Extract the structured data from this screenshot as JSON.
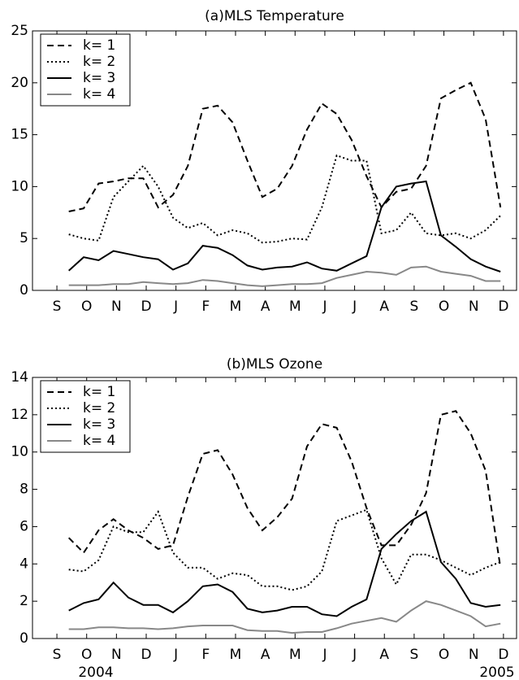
{
  "chart_data": [
    {
      "type": "line",
      "title": "(a)MLS Temperature",
      "x": [
        0.4,
        0.9,
        1.4,
        1.9,
        2.4,
        2.9,
        3.4,
        3.9,
        4.4,
        4.9,
        5.4,
        5.9,
        6.4,
        6.9,
        7.4,
        7.9,
        8.4,
        8.9,
        9.4,
        9.9,
        10.4,
        10.9,
        11.4,
        11.9,
        12.4,
        12.9,
        13.4,
        13.9,
        14.4,
        14.9
      ],
      "xlim": [
        -0.82,
        15.44
      ],
      "xticks": [
        {
          "value": 0,
          "label": "S"
        },
        {
          "value": 1,
          "label": "O"
        },
        {
          "value": 2,
          "label": "N"
        },
        {
          "value": 3,
          "label": "D"
        },
        {
          "value": 4,
          "label": "J"
        },
        {
          "value": 5,
          "label": "F"
        },
        {
          "value": 6,
          "label": "M"
        },
        {
          "value": 7,
          "label": "A"
        },
        {
          "value": 8,
          "label": "M"
        },
        {
          "value": 9,
          "label": "J"
        },
        {
          "value": 10,
          "label": "J"
        },
        {
          "value": 11,
          "label": "A"
        },
        {
          "value": 12,
          "label": "S"
        },
        {
          "value": 13,
          "label": "O"
        },
        {
          "value": 14,
          "label": "N"
        },
        {
          "value": 15,
          "label": "D"
        }
      ],
      "ylim": [
        0,
        25
      ],
      "yticks": [
        0,
        5,
        10,
        15,
        20,
        25
      ],
      "legend": "upper left",
      "series": [
        {
          "name": "k= 1",
          "color": "#000000",
          "dash": "dashed",
          "values": [
            7.6,
            7.9,
            10.3,
            10.5,
            10.8,
            10.8,
            8,
            9.2,
            12,
            17.5,
            17.8,
            16.2,
            12.5,
            9,
            9.8,
            12,
            15.5,
            18,
            17,
            14.5,
            11,
            8,
            9.5,
            9.8,
            12,
            18.5,
            19.3,
            20,
            16.5,
            8
          ]
        },
        {
          "name": "k= 2",
          "color": "#000000",
          "dash": "dotted",
          "values": [
            5.4,
            5,
            4.8,
            9,
            10.5,
            12,
            10,
            7,
            6,
            6.5,
            5.3,
            5.8,
            5.5,
            4.6,
            4.7,
            5,
            4.9,
            8,
            13,
            12.5,
            12.5,
            5.5,
            5.8,
            7.5,
            5.5,
            5.3,
            5.5,
            5,
            5.8,
            7.2
          ]
        },
        {
          "name": "k= 3",
          "color": "#000000",
          "dash": "solid",
          "values": [
            1.9,
            3.2,
            2.9,
            3.8,
            3.5,
            3.2,
            3,
            2,
            2.6,
            4.3,
            4.1,
            3.4,
            2.4,
            2,
            2.2,
            2.3,
            2.7,
            2.1,
            1.9,
            2.6,
            3.3,
            8,
            10,
            10.3,
            10.5,
            5.3,
            4.2,
            3,
            2.3,
            1.8
          ]
        },
        {
          "name": "k= 4",
          "color": "#888888",
          "dash": "solid",
          "values": [
            0.5,
            0.5,
            0.5,
            0.6,
            0.6,
            0.8,
            0.7,
            0.6,
            0.7,
            1.0,
            0.9,
            0.7,
            0.5,
            0.4,
            0.5,
            0.6,
            0.6,
            0.7,
            1.2,
            1.5,
            1.8,
            1.7,
            1.5,
            2.2,
            2.3,
            1.8,
            1.6,
            1.4,
            0.9,
            0.9
          ]
        }
      ]
    },
    {
      "type": "line",
      "title": "(b)MLS Ozone",
      "x": [
        0.4,
        0.9,
        1.4,
        1.9,
        2.4,
        2.9,
        3.4,
        3.9,
        4.4,
        4.9,
        5.4,
        5.9,
        6.4,
        6.9,
        7.4,
        7.9,
        8.4,
        8.9,
        9.4,
        9.9,
        10.4,
        10.9,
        11.4,
        11.9,
        12.4,
        12.9,
        13.4,
        13.9,
        14.4,
        14.9
      ],
      "xlim": [
        -0.82,
        15.44
      ],
      "xticks": [
        {
          "value": 0,
          "label": "S"
        },
        {
          "value": 1,
          "label": "O"
        },
        {
          "value": 2,
          "label": "N"
        },
        {
          "value": 3,
          "label": "D"
        },
        {
          "value": 4,
          "label": "J"
        },
        {
          "value": 5,
          "label": "F"
        },
        {
          "value": 6,
          "label": "M"
        },
        {
          "value": 7,
          "label": "A"
        },
        {
          "value": 8,
          "label": "M"
        },
        {
          "value": 9,
          "label": "J"
        },
        {
          "value": 10,
          "label": "J"
        },
        {
          "value": 11,
          "label": "A"
        },
        {
          "value": 12,
          "label": "S"
        },
        {
          "value": 13,
          "label": "O"
        },
        {
          "value": 14,
          "label": "N"
        },
        {
          "value": 15,
          "label": "D"
        }
      ],
      "ylim": [
        0,
        14
      ],
      "yticks": [
        0,
        2,
        4,
        6,
        8,
        10,
        12,
        14
      ],
      "legend": "upper left",
      "annotations": [
        "2004",
        "2005"
      ],
      "series": [
        {
          "name": "k= 1",
          "color": "#000000",
          "dash": "dashed",
          "values": [
            5.4,
            4.6,
            5.8,
            6.4,
            5.8,
            5.4,
            4.8,
            5,
            7.6,
            9.9,
            10.1,
            8.8,
            7,
            5.8,
            6.5,
            7.5,
            10.3,
            11.5,
            11.3,
            9.5,
            7,
            5,
            5,
            6.1,
            7.8,
            12,
            12.2,
            11,
            9,
            3.8
          ]
        },
        {
          "name": "k= 2",
          "color": "#000000",
          "dash": "dotted",
          "values": [
            3.7,
            3.6,
            4.2,
            6,
            5.7,
            5.7,
            6.8,
            4.6,
            3.8,
            3.8,
            3.2,
            3.5,
            3.4,
            2.8,
            2.8,
            2.6,
            2.8,
            3.6,
            6.3,
            6.6,
            6.9,
            4.3,
            2.9,
            4.5,
            4.5,
            4.2,
            3.8,
            3.4,
            3.8,
            4.1
          ]
        },
        {
          "name": "k= 3",
          "color": "#000000",
          "dash": "solid",
          "values": [
            1.5,
            1.9,
            2.1,
            3,
            2.2,
            1.8,
            1.8,
            1.4,
            2,
            2.8,
            2.9,
            2.5,
            1.6,
            1.4,
            1.5,
            1.7,
            1.7,
            1.3,
            1.2,
            1.7,
            2.1,
            4.8,
            5.6,
            6.3,
            6.8,
            4.1,
            3.2,
            1.9,
            1.7,
            1.8
          ]
        },
        {
          "name": "k= 4",
          "color": "#888888",
          "dash": "solid",
          "values": [
            0.5,
            0.5,
            0.6,
            0.6,
            0.55,
            0.55,
            0.5,
            0.55,
            0.65,
            0.7,
            0.7,
            0.7,
            0.45,
            0.4,
            0.4,
            0.3,
            0.35,
            0.35,
            0.55,
            0.8,
            0.95,
            1.1,
            0.9,
            1.5,
            2.0,
            1.8,
            1.5,
            1.2,
            0.65,
            0.8
          ]
        }
      ]
    }
  ]
}
